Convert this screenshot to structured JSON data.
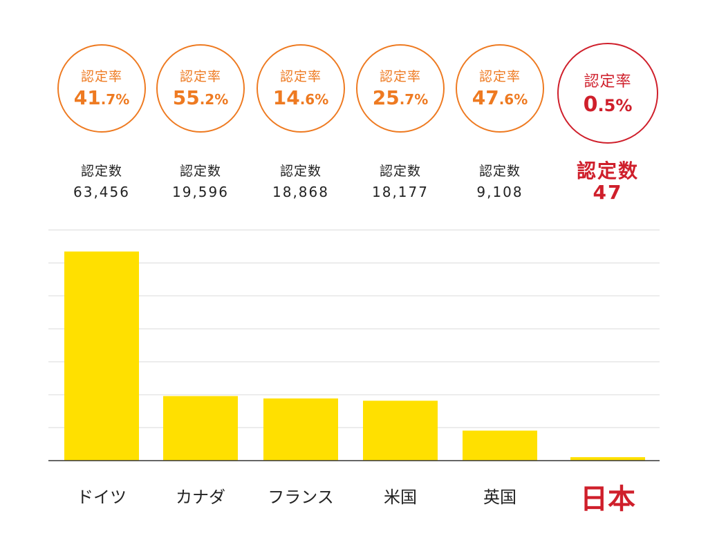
{
  "colors": {
    "badge_border": "#ee7a21",
    "badge_text": "#ee7a21",
    "highlight": "#cf1f2b",
    "bar": "#ffe000",
    "grid": "#e6e6e6",
    "axis": "#333333",
    "text": "#222222"
  },
  "columns": [
    {
      "rate_label": "認定率",
      "rate_big": "41",
      "rate_small": ".7%",
      "count_label": "認定数",
      "count_value": "63,456",
      "category": "ドイツ"
    },
    {
      "rate_label": "認定率",
      "rate_big": "55",
      "rate_small": ".2%",
      "count_label": "認定数",
      "count_value": "19,596",
      "category": "カナダ"
    },
    {
      "rate_label": "認定率",
      "rate_big": "14",
      "rate_small": ".6%",
      "count_label": "認定数",
      "count_value": "18,868",
      "category": "フランス"
    },
    {
      "rate_label": "認定率",
      "rate_big": "25",
      "rate_small": ".7%",
      "count_label": "認定数",
      "count_value": "18,177",
      "category": "米国"
    },
    {
      "rate_label": "認定率",
      "rate_big": "47",
      "rate_small": ".6%",
      "count_label": "認定数",
      "count_value": "9,108",
      "category": "英国"
    },
    {
      "rate_label": "認定率",
      "rate_big": "0",
      "rate_small": ".5%",
      "count_label": "認定数",
      "count_value": "47",
      "category": "日本"
    }
  ],
  "chart_data": {
    "type": "bar",
    "categories": [
      "ドイツ",
      "カナダ",
      "フランス",
      "米国",
      "英国",
      "日本"
    ],
    "values": [
      63456,
      19596,
      18868,
      18177,
      9108,
      47
    ],
    "highlight_category": "日本",
    "ylim": [
      0,
      70000
    ],
    "grid": true,
    "title": "",
    "xlabel": "",
    "ylabel": ""
  }
}
